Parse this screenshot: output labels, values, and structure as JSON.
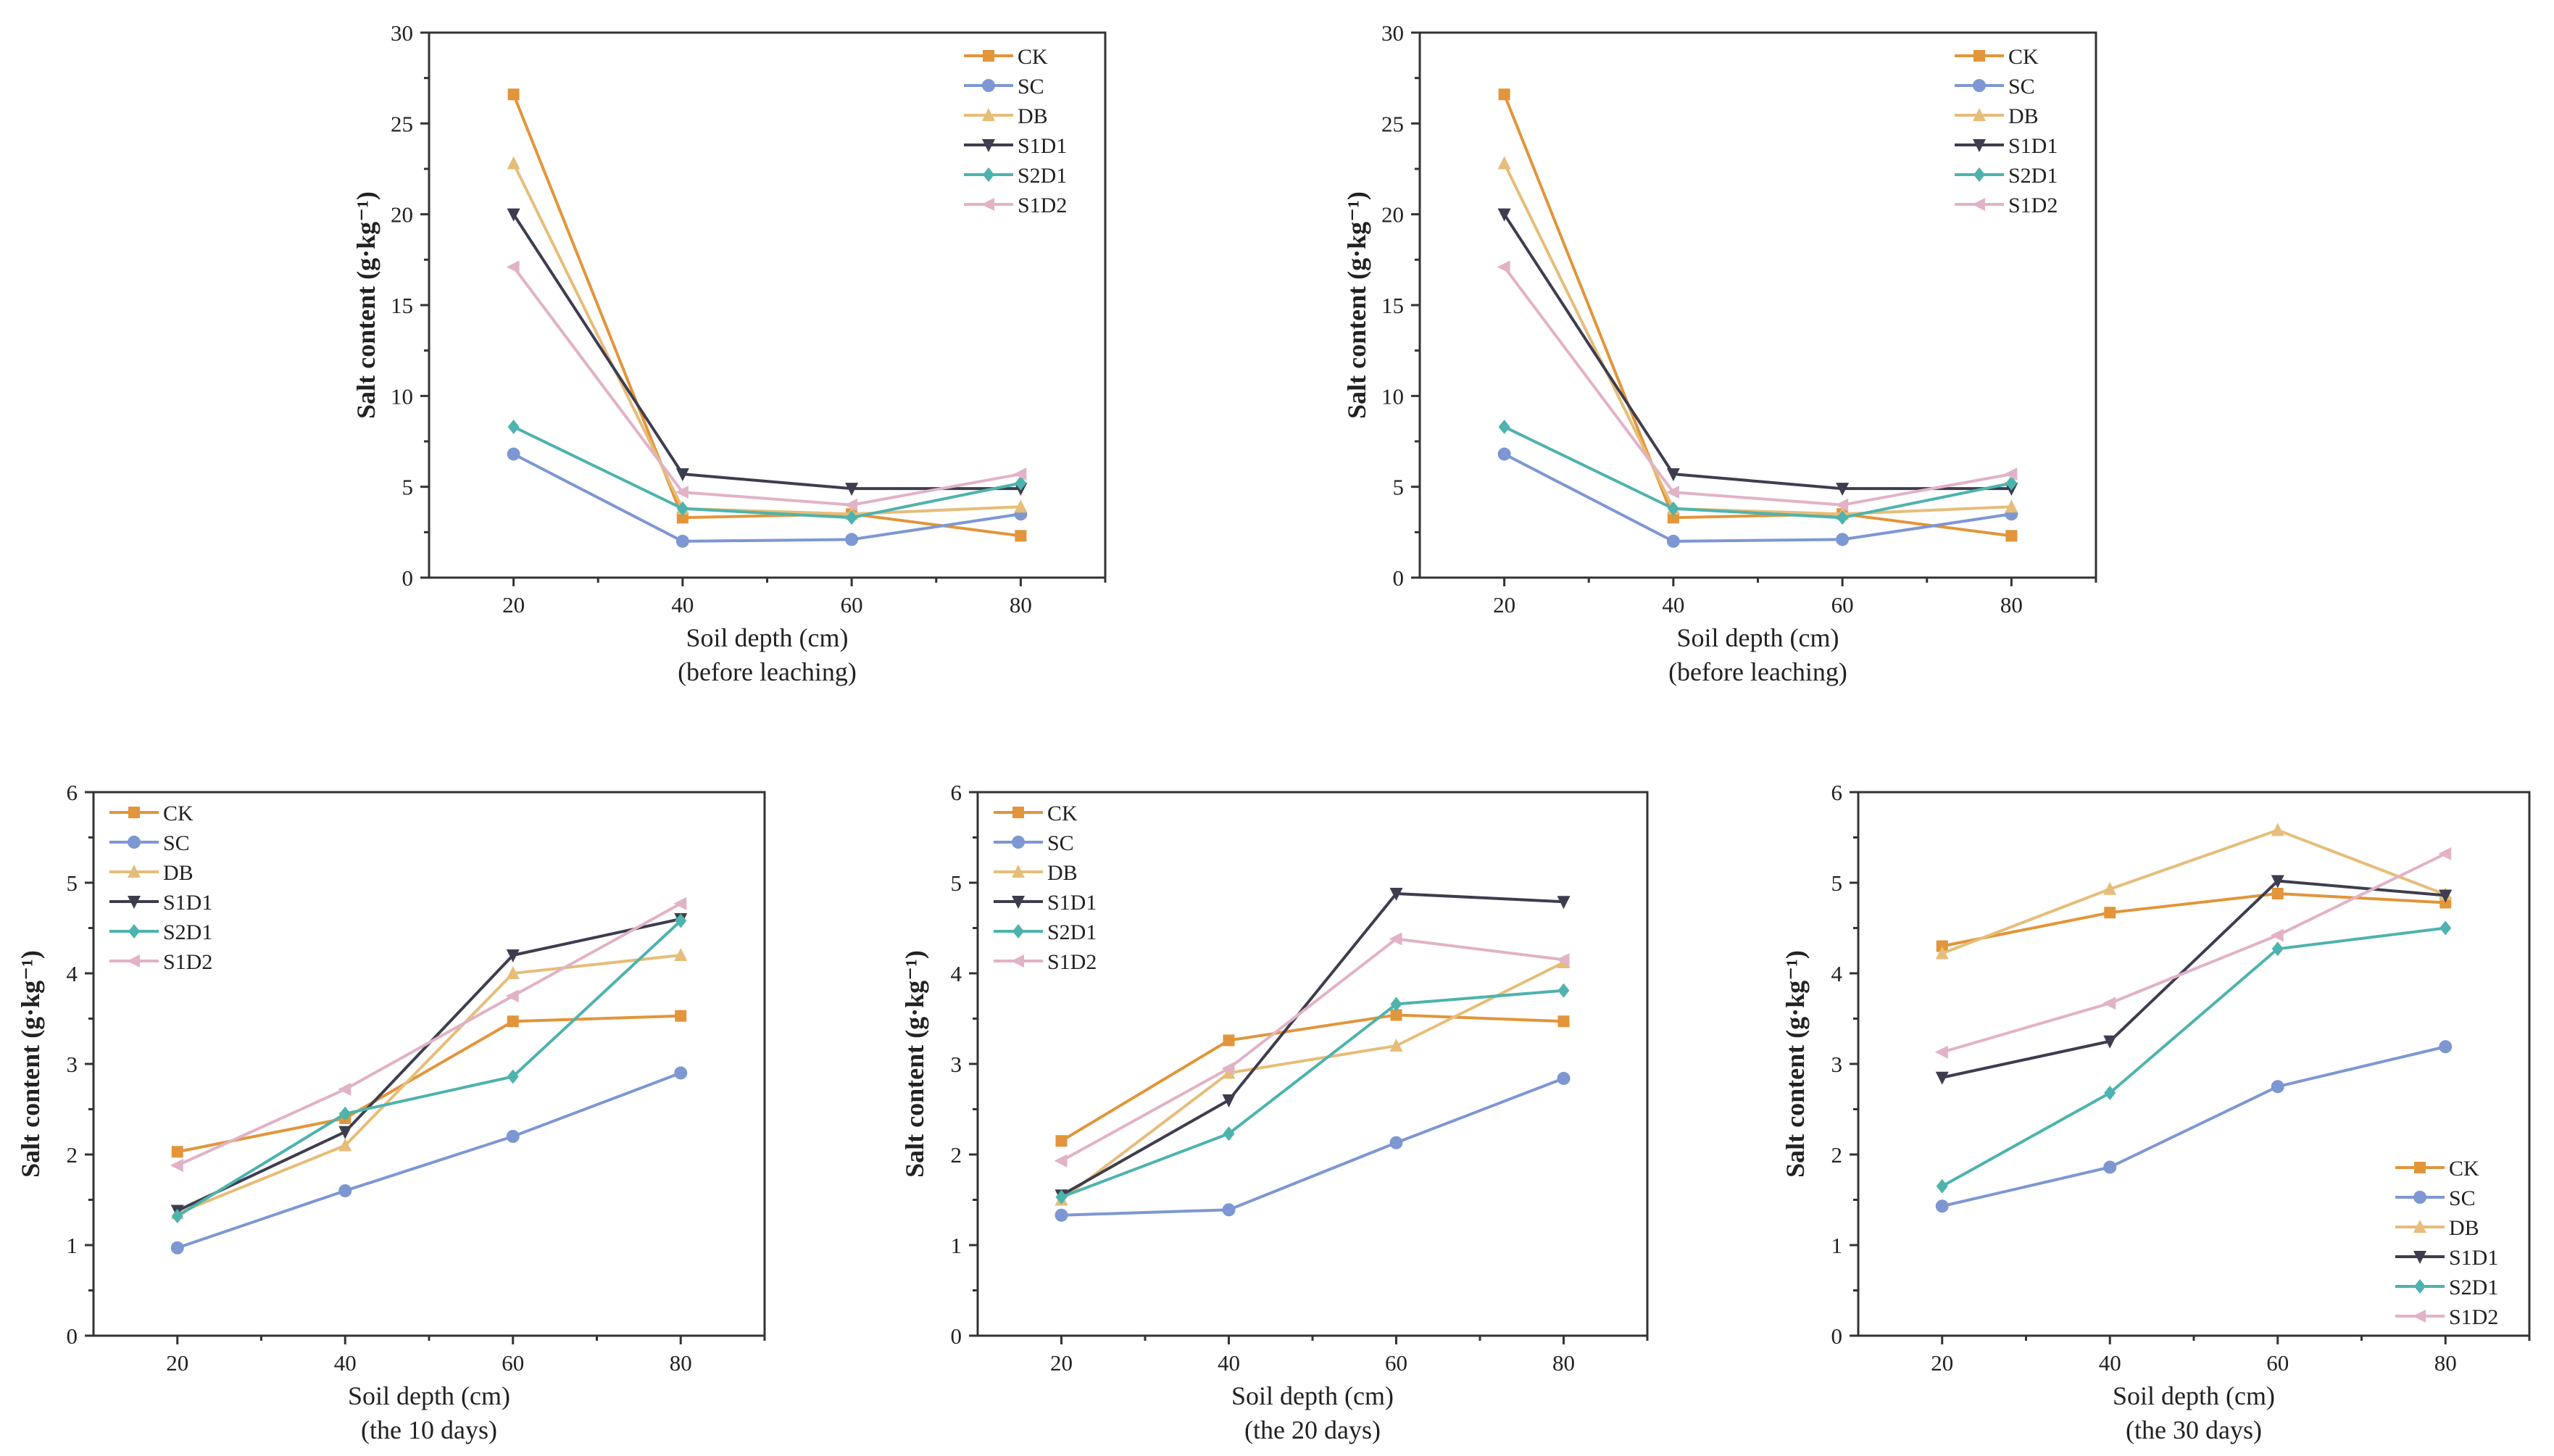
{
  "colors": {
    "CK": "#E2953A",
    "SC": "#7D97D3",
    "DB": "#E6BD79",
    "S1D1": "#3D3D4F",
    "S2D1": "#4DB3AE",
    "S1D2": "#E2B2C6"
  },
  "markers": {
    "CK": "square",
    "SC": "circle",
    "DB": "triangle-up",
    "S1D1": "triangle-down",
    "S2D1": "diamond",
    "S1D2": "triangle-left"
  },
  "chart_data": [
    {
      "type": "line",
      "title": "",
      "xlabel": "Soil depth (cm)",
      "xlabel_sub": "(before leaching)",
      "ylabel": "Salt content (g·kg⁻¹)",
      "x": [
        20,
        40,
        60,
        80
      ],
      "xlim": [
        10,
        90
      ],
      "ylim": [
        0,
        30
      ],
      "yticks": [
        "0",
        "5",
        "10",
        "15",
        "20",
        "25",
        "30"
      ],
      "xticks": [
        "20",
        "40",
        "60",
        "80"
      ],
      "legend": "top-right",
      "grid": false,
      "series": [
        {
          "name": "CK",
          "values": [
            26.6,
            3.3,
            3.5,
            2.3
          ]
        },
        {
          "name": "SC",
          "values": [
            6.8,
            2.0,
            2.1,
            3.5
          ]
        },
        {
          "name": "DB",
          "values": [
            22.8,
            3.8,
            3.5,
            3.9
          ]
        },
        {
          "name": "S1D1",
          "values": [
            20.0,
            5.7,
            4.9,
            4.9
          ]
        },
        {
          "name": "S2D1",
          "values": [
            8.3,
            3.8,
            3.3,
            5.2
          ]
        },
        {
          "name": "S1D2",
          "values": [
            17.1,
            4.7,
            4.0,
            5.7
          ]
        }
      ]
    },
    {
      "type": "line",
      "title": "",
      "xlabel": "Soil depth (cm)",
      "xlabel_sub": "(before leaching)",
      "ylabel": "Salt content (g·kg⁻¹)",
      "x": [
        20,
        40,
        60,
        80
      ],
      "xlim": [
        10,
        90
      ],
      "ylim": [
        0,
        30
      ],
      "yticks": [
        "0",
        "5",
        "10",
        "15",
        "20",
        "25",
        "30"
      ],
      "xticks": [
        "20",
        "40",
        "60",
        "80"
      ],
      "legend": "top-right",
      "grid": false,
      "series": [
        {
          "name": "CK",
          "values": [
            26.6,
            3.3,
            3.5,
            2.3
          ]
        },
        {
          "name": "SC",
          "values": [
            6.8,
            2.0,
            2.1,
            3.5
          ]
        },
        {
          "name": "DB",
          "values": [
            22.8,
            3.8,
            3.5,
            3.9
          ]
        },
        {
          "name": "S1D1",
          "values": [
            20.0,
            5.7,
            4.9,
            4.9
          ]
        },
        {
          "name": "S2D1",
          "values": [
            8.3,
            3.8,
            3.3,
            5.2
          ]
        },
        {
          "name": "S1D2",
          "values": [
            17.1,
            4.7,
            4.0,
            5.7
          ]
        }
      ]
    },
    {
      "type": "line",
      "title": "",
      "xlabel": "Soil depth (cm)",
      "xlabel_sub": "(the 10 days)",
      "ylabel": "Salt content (g·kg⁻¹)",
      "x": [
        20,
        40,
        60,
        80
      ],
      "xlim": [
        10,
        90
      ],
      "ylim": [
        0,
        6
      ],
      "yticks": [
        "0",
        "1",
        "2",
        "3",
        "4",
        "5",
        "6"
      ],
      "xticks": [
        "20",
        "40",
        "60",
        "80"
      ],
      "legend": "top-left",
      "grid": false,
      "series": [
        {
          "name": "CK",
          "values": [
            2.03,
            2.4,
            3.47,
            3.53
          ]
        },
        {
          "name": "SC",
          "values": [
            0.97,
            1.6,
            2.2,
            2.9
          ]
        },
        {
          "name": "DB",
          "values": [
            1.35,
            2.1,
            4.0,
            4.2
          ]
        },
        {
          "name": "S1D1",
          "values": [
            1.38,
            2.25,
            4.2,
            4.6
          ]
        },
        {
          "name": "S2D1",
          "values": [
            1.32,
            2.45,
            2.86,
            4.58
          ]
        },
        {
          "name": "S1D2",
          "values": [
            1.88,
            2.72,
            3.75,
            4.77
          ]
        }
      ]
    },
    {
      "type": "line",
      "title": "",
      "xlabel": "Soil depth (cm)",
      "xlabel_sub": "(the 20 days)",
      "ylabel": "Salt content (g·kg⁻¹)",
      "x": [
        20,
        40,
        60,
        80
      ],
      "xlim": [
        10,
        90
      ],
      "ylim": [
        0,
        6
      ],
      "yticks": [
        "0",
        "1",
        "2",
        "3",
        "4",
        "5",
        "6"
      ],
      "xticks": [
        "20",
        "40",
        "60",
        "80"
      ],
      "legend": "top-left",
      "grid": false,
      "series": [
        {
          "name": "CK",
          "values": [
            2.15,
            3.26,
            3.54,
            3.47
          ]
        },
        {
          "name": "SC",
          "values": [
            1.33,
            1.39,
            2.13,
            2.84
          ]
        },
        {
          "name": "DB",
          "values": [
            1.5,
            2.9,
            3.2,
            4.12
          ]
        },
        {
          "name": "S1D1",
          "values": [
            1.55,
            2.6,
            4.88,
            4.79
          ]
        },
        {
          "name": "S2D1",
          "values": [
            1.53,
            2.23,
            3.66,
            3.81
          ]
        },
        {
          "name": "S1D2",
          "values": [
            1.93,
            2.95,
            4.38,
            4.15
          ]
        }
      ]
    },
    {
      "type": "line",
      "title": "",
      "xlabel": "Soil depth (cm)",
      "xlabel_sub": "(the 30 days)",
      "ylabel": "Salt content (g·kg⁻¹)",
      "x": [
        20,
        40,
        60,
        80
      ],
      "xlim": [
        10,
        90
      ],
      "ylim": [
        0,
        6
      ],
      "yticks": [
        "0",
        "1",
        "2",
        "3",
        "4",
        "5",
        "6"
      ],
      "xticks": [
        "20",
        "40",
        "60",
        "80"
      ],
      "legend": "bottom-right",
      "grid": false,
      "series": [
        {
          "name": "CK",
          "values": [
            4.3,
            4.67,
            4.88,
            4.78
          ]
        },
        {
          "name": "SC",
          "values": [
            1.43,
            1.86,
            2.75,
            3.19
          ]
        },
        {
          "name": "DB",
          "values": [
            4.22,
            4.93,
            5.58,
            4.87
          ]
        },
        {
          "name": "S1D1",
          "values": [
            2.85,
            3.25,
            5.02,
            4.86
          ]
        },
        {
          "name": "S2D1",
          "values": [
            1.65,
            2.68,
            4.27,
            4.5
          ]
        },
        {
          "name": "S1D2",
          "values": [
            3.13,
            3.67,
            4.42,
            5.32
          ]
        }
      ]
    }
  ]
}
